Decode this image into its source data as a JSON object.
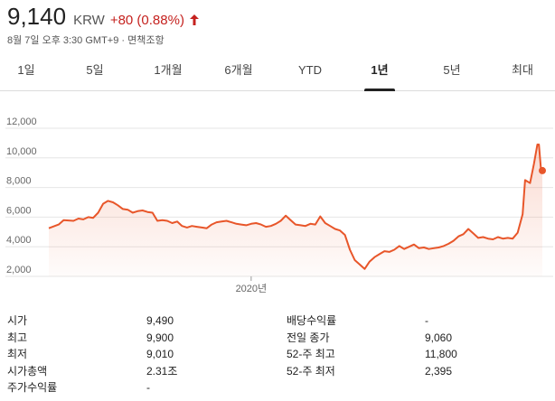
{
  "quote": {
    "price": "9,140",
    "currency": "KRW",
    "change": "+80 (0.88%)",
    "timestamp": "8월 7일 오후 3:30 GMT+9",
    "disclaimer": "면책조항",
    "up_color": "#c5221f"
  },
  "tabs": [
    {
      "label": "1일",
      "active": false
    },
    {
      "label": "5일",
      "active": false
    },
    {
      "label": "1개월",
      "active": false
    },
    {
      "label": "6개월",
      "active": false
    },
    {
      "label": "YTD",
      "active": false
    },
    {
      "label": "1년",
      "active": true
    },
    {
      "label": "5년",
      "active": false
    },
    {
      "label": "최대",
      "active": false
    }
  ],
  "chart_data": {
    "type": "area",
    "ylim": [
      2000,
      12000
    ],
    "y_ticks": [
      {
        "value": 12000,
        "label": "12,000"
      },
      {
        "value": 10000,
        "label": "10,000"
      },
      {
        "value": 8000,
        "label": "8,000"
      },
      {
        "value": 6000,
        "label": "6,000"
      },
      {
        "value": 4000,
        "label": "4,000"
      },
      {
        "value": 2000,
        "label": "2,000"
      }
    ],
    "x_ticks": [
      {
        "t": 0.41,
        "label": "2020년"
      }
    ],
    "line_color": "#e8562a",
    "series": [
      {
        "points": [
          [
            0.0,
            5250
          ],
          [
            0.02,
            5500
          ],
          [
            0.03,
            5800
          ],
          [
            0.05,
            5750
          ],
          [
            0.06,
            5900
          ],
          [
            0.07,
            5850
          ],
          [
            0.08,
            6000
          ],
          [
            0.09,
            5950
          ],
          [
            0.1,
            6300
          ],
          [
            0.11,
            6900
          ],
          [
            0.12,
            7100
          ],
          [
            0.13,
            7000
          ],
          [
            0.14,
            6800
          ],
          [
            0.15,
            6550
          ],
          [
            0.16,
            6500
          ],
          [
            0.17,
            6300
          ],
          [
            0.18,
            6400
          ],
          [
            0.19,
            6450
          ],
          [
            0.2,
            6350
          ],
          [
            0.21,
            6300
          ],
          [
            0.22,
            5750
          ],
          [
            0.23,
            5800
          ],
          [
            0.24,
            5750
          ],
          [
            0.25,
            5600
          ],
          [
            0.26,
            5700
          ],
          [
            0.27,
            5400
          ],
          [
            0.28,
            5300
          ],
          [
            0.29,
            5400
          ],
          [
            0.3,
            5350
          ],
          [
            0.31,
            5300
          ],
          [
            0.32,
            5250
          ],
          [
            0.33,
            5500
          ],
          [
            0.34,
            5650
          ],
          [
            0.35,
            5700
          ],
          [
            0.36,
            5750
          ],
          [
            0.37,
            5650
          ],
          [
            0.38,
            5550
          ],
          [
            0.39,
            5500
          ],
          [
            0.4,
            5450
          ],
          [
            0.41,
            5550
          ],
          [
            0.42,
            5600
          ],
          [
            0.43,
            5500
          ],
          [
            0.44,
            5350
          ],
          [
            0.45,
            5400
          ],
          [
            0.46,
            5550
          ],
          [
            0.47,
            5750
          ],
          [
            0.48,
            6100
          ],
          [
            0.49,
            5800
          ],
          [
            0.5,
            5500
          ],
          [
            0.51,
            5450
          ],
          [
            0.52,
            5400
          ],
          [
            0.53,
            5550
          ],
          [
            0.54,
            5500
          ],
          [
            0.55,
            6050
          ],
          [
            0.56,
            5600
          ],
          [
            0.57,
            5400
          ],
          [
            0.58,
            5200
          ],
          [
            0.59,
            5100
          ],
          [
            0.6,
            4800
          ],
          [
            0.61,
            3800
          ],
          [
            0.62,
            3100
          ],
          [
            0.63,
            2800
          ],
          [
            0.64,
            2500
          ],
          [
            0.65,
            3000
          ],
          [
            0.66,
            3300
          ],
          [
            0.67,
            3500
          ],
          [
            0.68,
            3700
          ],
          [
            0.69,
            3650
          ],
          [
            0.7,
            3800
          ],
          [
            0.71,
            4050
          ],
          [
            0.72,
            3850
          ],
          [
            0.73,
            4000
          ],
          [
            0.74,
            4150
          ],
          [
            0.75,
            3900
          ],
          [
            0.76,
            3950
          ],
          [
            0.77,
            3850
          ],
          [
            0.78,
            3900
          ],
          [
            0.79,
            3950
          ],
          [
            0.8,
            4050
          ],
          [
            0.81,
            4200
          ],
          [
            0.82,
            4400
          ],
          [
            0.83,
            4700
          ],
          [
            0.84,
            4850
          ],
          [
            0.85,
            5200
          ],
          [
            0.86,
            4900
          ],
          [
            0.87,
            4600
          ],
          [
            0.88,
            4650
          ],
          [
            0.89,
            4550
          ],
          [
            0.9,
            4500
          ],
          [
            0.91,
            4650
          ],
          [
            0.92,
            4550
          ],
          [
            0.93,
            4600
          ],
          [
            0.94,
            4550
          ],
          [
            0.95,
            4950
          ],
          [
            0.96,
            6200
          ],
          [
            0.965,
            8500
          ],
          [
            0.975,
            8300
          ],
          [
            0.983,
            9600
          ],
          [
            0.99,
            10900
          ],
          [
            0.993,
            10900
          ],
          [
            0.997,
            9300
          ],
          [
            1.0,
            9140
          ]
        ]
      }
    ]
  },
  "stats": {
    "left": [
      {
        "label": "시가",
        "value": "9,490"
      },
      {
        "label": "최고",
        "value": "9,900"
      },
      {
        "label": "최저",
        "value": "9,010"
      },
      {
        "label": "시가총액",
        "value": "2.31조"
      },
      {
        "label": "주가수익률",
        "value": "-"
      }
    ],
    "right": [
      {
        "label": "배당수익률",
        "value": "-"
      },
      {
        "label": "전일 종가",
        "value": "9,060"
      },
      {
        "label": "52-주 최고",
        "value": "11,800"
      },
      {
        "label": "52-주 최저",
        "value": "2,395"
      }
    ]
  }
}
